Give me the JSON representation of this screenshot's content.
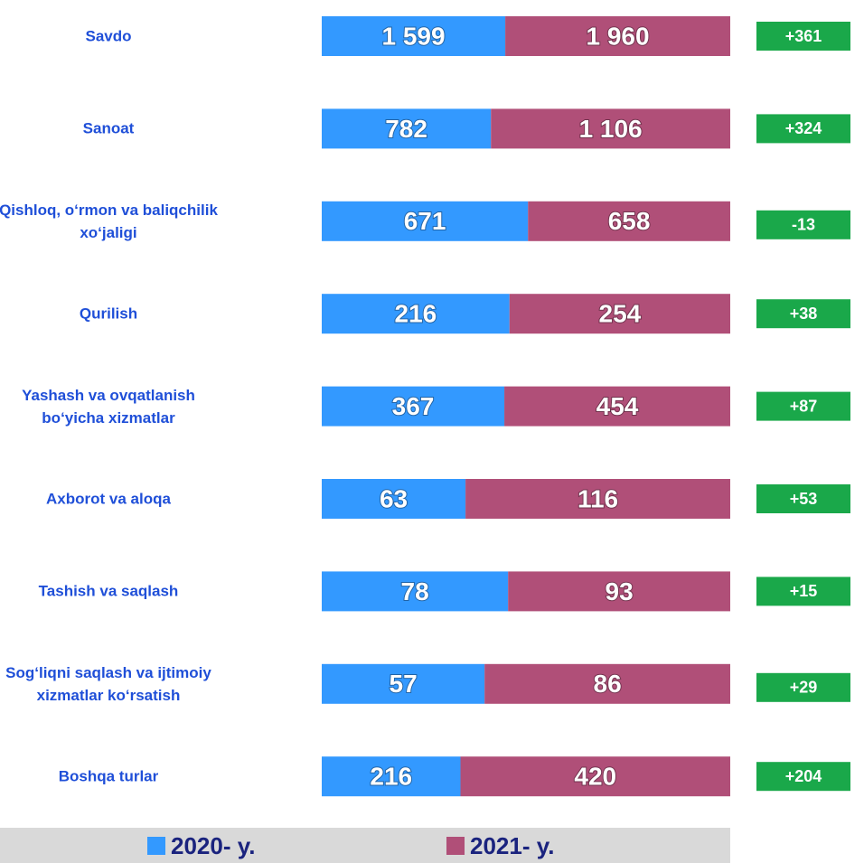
{
  "chart_data": {
    "type": "stacked_bar_100",
    "categories": [
      "Savdo",
      "Sanoat",
      "Qishloq, o‘rmon va baliqchilik\nxo‘jaligi",
      "Qurilish",
      "Yashash va ovqatlanish\nbo‘yicha xizmatlar",
      "Axborot va aloqa",
      "Tashish va saqlash",
      "Sog‘liqni saqlash va ijtimoiy\nxizmatlar ko‘rsatish",
      "Boshqa turlar"
    ],
    "series": [
      {
        "name": "2020- y.",
        "color": "#3399ff",
        "values": [
          1599,
          782,
          671,
          216,
          367,
          63,
          78,
          57,
          216
        ],
        "value_labels": [
          "1 599",
          "782",
          "671",
          "216",
          "367",
          "63",
          "78",
          "57",
          "216"
        ]
      },
      {
        "name": "2021- y.",
        "color": "#b04f78",
        "values": [
          1960,
          1106,
          658,
          254,
          454,
          116,
          93,
          86,
          420
        ],
        "value_labels": [
          "1 960",
          "1 106",
          "658",
          "254",
          "454",
          "116",
          "93",
          "86",
          "420"
        ]
      }
    ],
    "differences": [
      361,
      324,
      -13,
      38,
      87,
      53,
      15,
      29,
      204
    ],
    "difference_labels": [
      "+361",
      "+324",
      "-13",
      "+38",
      "+87",
      "+53",
      "+15",
      "+29",
      "+204"
    ],
    "difference_color": "#1aa84a"
  }
}
